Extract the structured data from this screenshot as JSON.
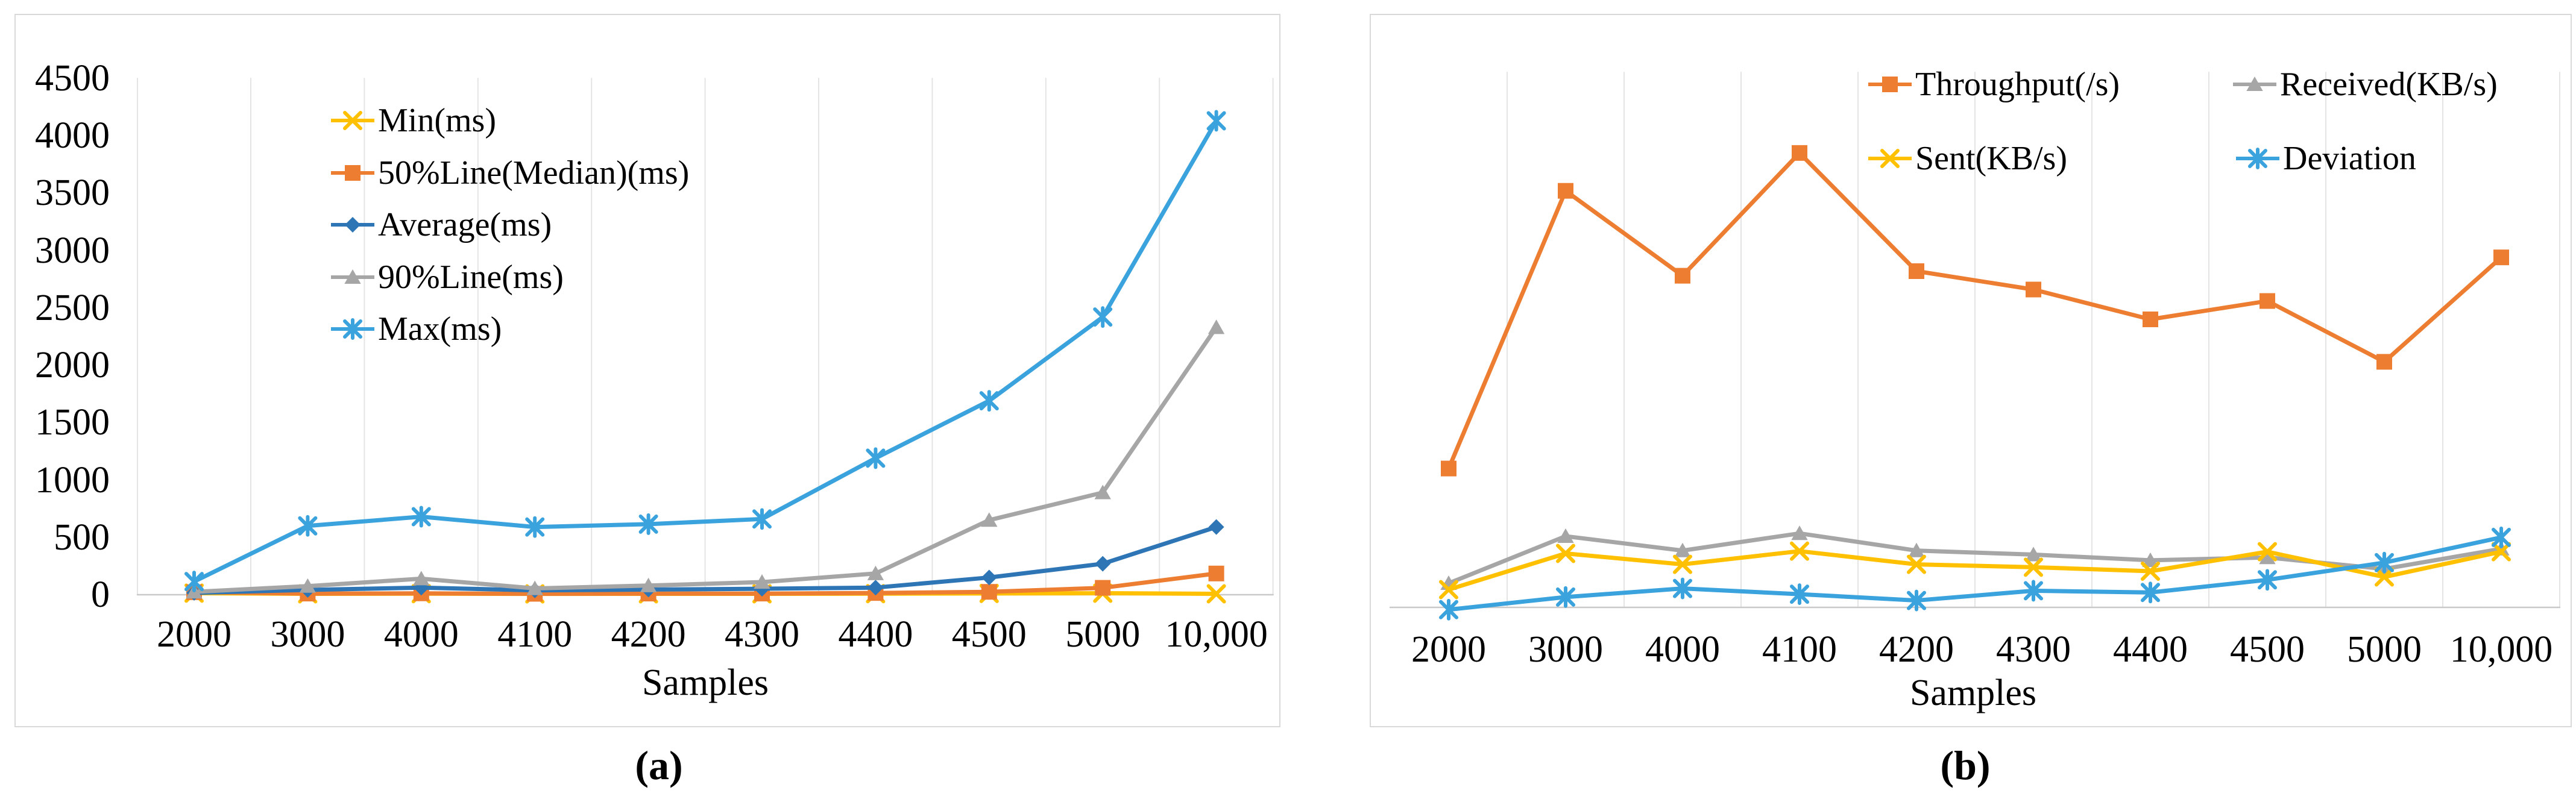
{
  "figure": {
    "description": "Two side-by-side line charts of load-test results versus number of samples",
    "text_color": "#000000",
    "panel_border_color": "#d9d9d9",
    "gridline_color": "#e4e4e4",
    "baseline_color": "#c9c9c9",
    "background": "#ffffff"
  },
  "chart_data": [
    {
      "id": "a",
      "type": "line",
      "caption": "(a)",
      "title": "",
      "xlabel": "Samples",
      "ylabel": "",
      "categories": [
        "2000",
        "3000",
        "4000",
        "4100",
        "4200",
        "4300",
        "4400",
        "4500",
        "5000",
        "10,000"
      ],
      "y_ticks": [
        "0",
        "500",
        "1000",
        "1500",
        "2000",
        "2500",
        "3000",
        "3500",
        "4000",
        "4500"
      ],
      "ylim": [
        0,
        4500
      ],
      "grid": "vertical-only",
      "legend_position": "inside-upper-left, stacked vertically",
      "series": [
        {
          "name": "Min(ms)",
          "color": "#FFC000",
          "marker": "x",
          "values": [
            14,
            8,
            9,
            7,
            8,
            8,
            9,
            11,
            13,
            8
          ]
        },
        {
          "name": "50%Line(Median)(ms)",
          "color": "#ED7D31",
          "marker": "square",
          "values": [
            22,
            10,
            12,
            8,
            10,
            10,
            15,
            25,
            60,
            185
          ]
        },
        {
          "name": "Average(ms)",
          "color": "#2E75B6",
          "marker": "diamond",
          "values": [
            16,
            42,
            62,
            38,
            45,
            52,
            62,
            150,
            270,
            590
          ]
        },
        {
          "name": "90%Line(ms)",
          "color": "#A6A6A6",
          "marker": "triangle",
          "values": [
            25,
            75,
            140,
            55,
            80,
            110,
            185,
            650,
            890,
            2330
          ]
        },
        {
          "name": "Max(ms)",
          "color": "#3AA2DC",
          "marker": "asterisk",
          "values": [
            115,
            600,
            680,
            590,
            615,
            660,
            1190,
            1690,
            2420,
            4130
          ]
        }
      ]
    },
    {
      "id": "b",
      "type": "line",
      "caption": "(b)",
      "title": "",
      "xlabel": "Samples",
      "ylabel": "",
      "categories": [
        "2000",
        "3000",
        "4000",
        "4100",
        "4200",
        "4300",
        "4400",
        "4500",
        "5000",
        "10,000"
      ],
      "y_ticks": [],
      "ylim": [
        -150,
        4700
      ],
      "grid": "vertical-only",
      "legend_position": "inside-top, two columns",
      "note": "No y-axis tick labels are shown in the source; values are estimated on the same pixel scale as panel (a).",
      "series": [
        {
          "name": "Throughput(/s)",
          "color": "#ED7D31",
          "marker": "square",
          "values": [
            1210,
            3630,
            2890,
            3960,
            2930,
            2770,
            2510,
            2670,
            2140,
            3050
          ]
        },
        {
          "name": "Received(KB/s)",
          "color": "#A6A6A6",
          "marker": "triangle",
          "values": [
            210,
            620,
            495,
            645,
            495,
            460,
            410,
            435,
            335,
            510
          ]
        },
        {
          "name": "Sent(KB/s)",
          "color": "#FFC000",
          "marker": "x",
          "values": [
            155,
            470,
            375,
            490,
            375,
            350,
            315,
            485,
            265,
            485
          ]
        },
        {
          "name": "Deviation",
          "color": "#3AA2DC",
          "marker": "asterisk",
          "values": [
            -20,
            90,
            165,
            115,
            60,
            145,
            130,
            240,
            390,
            610
          ]
        }
      ]
    }
  ]
}
